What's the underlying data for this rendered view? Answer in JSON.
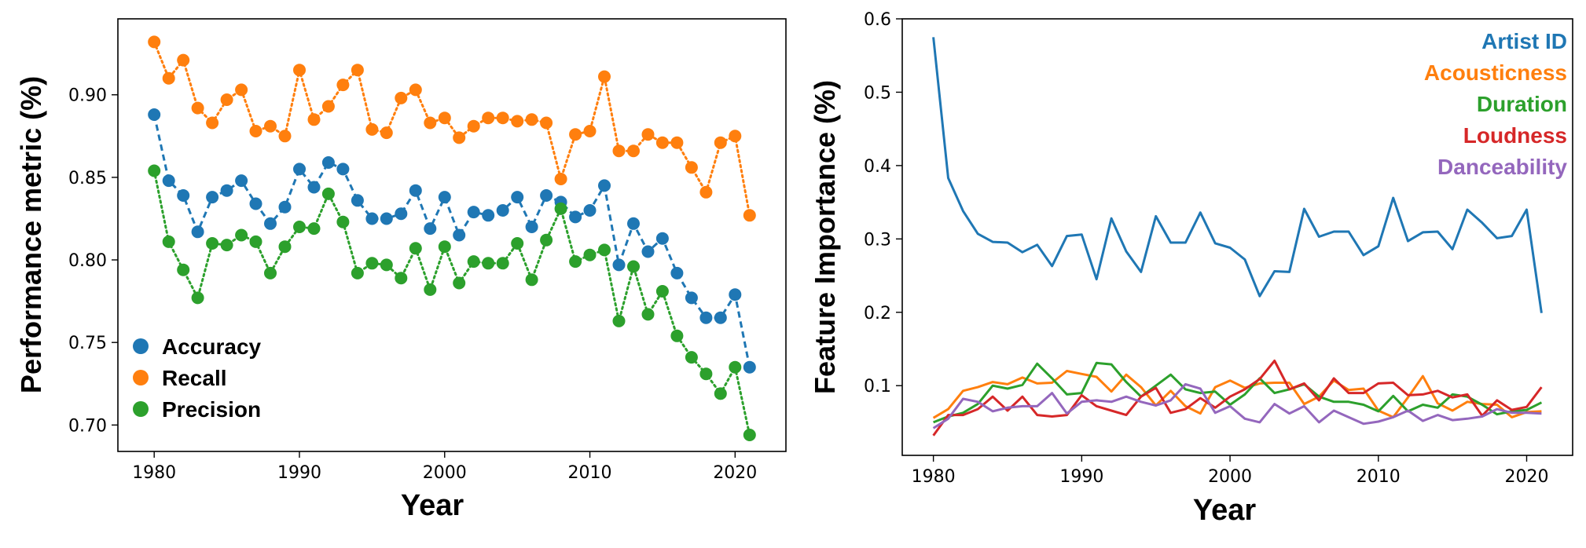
{
  "colors": {
    "blue": "#1f77b4",
    "orange": "#ff7f0e",
    "green": "#2ca02c",
    "red": "#d62728",
    "purple": "#9467bd"
  },
  "chart_data": [
    {
      "type": "line",
      "xlabel": "Year",
      "ylabel": "Performance metric (%)",
      "xlim": [
        1977.5,
        2023.5
      ],
      "ylim": [
        0.684,
        0.946
      ],
      "xticks": [
        1980,
        1990,
        2000,
        2010,
        2020
      ],
      "yticks": [
        0.7,
        0.75,
        0.8,
        0.85,
        0.9
      ],
      "ytick_labels": [
        "0.70",
        "0.75",
        "0.80",
        "0.85",
        "0.90"
      ],
      "grid": false,
      "legend_position": "lower-left",
      "marker": "circle",
      "x": [
        1980,
        1981,
        1982,
        1983,
        1984,
        1985,
        1986,
        1987,
        1988,
        1989,
        1990,
        1991,
        1992,
        1993,
        1994,
        1995,
        1996,
        1997,
        1998,
        1999,
        2000,
        2001,
        2002,
        2003,
        2004,
        2005,
        2006,
        2007,
        2008,
        2009,
        2010,
        2011,
        2012,
        2013,
        2014,
        2015,
        2016,
        2017,
        2018,
        2019,
        2020,
        2021
      ],
      "series": [
        {
          "name": "Accuracy",
          "color": "#1f77b4",
          "linestyle": "dashed",
          "values": [
            0.888,
            0.848,
            0.839,
            0.817,
            0.838,
            0.842,
            0.848,
            0.834,
            0.822,
            0.832,
            0.855,
            0.844,
            0.859,
            0.855,
            0.836,
            0.825,
            0.825,
            0.828,
            0.842,
            0.819,
            0.838,
            0.815,
            0.829,
            0.827,
            0.83,
            0.838,
            0.82,
            0.839,
            0.835,
            0.826,
            0.83,
            0.845,
            0.797,
            0.822,
            0.805,
            0.813,
            0.792,
            0.777,
            0.765,
            0.765,
            0.779,
            0.735
          ]
        },
        {
          "name": "Recall",
          "color": "#ff7f0e",
          "linestyle": "dotted",
          "values": [
            0.932,
            0.91,
            0.921,
            0.892,
            0.883,
            0.897,
            0.903,
            0.878,
            0.881,
            0.875,
            0.915,
            0.885,
            0.893,
            0.906,
            0.915,
            0.879,
            0.877,
            0.898,
            0.903,
            0.883,
            0.886,
            0.874,
            0.881,
            0.886,
            0.886,
            0.884,
            0.885,
            0.883,
            0.849,
            0.876,
            0.878,
            0.911,
            0.866,
            0.866,
            0.876,
            0.871,
            0.871,
            0.856,
            0.841,
            0.871,
            0.875,
            0.827
          ]
        },
        {
          "name": "Precision",
          "color": "#2ca02c",
          "linestyle": "dotted",
          "values": [
            0.854,
            0.811,
            0.794,
            0.777,
            0.81,
            0.809,
            0.815,
            0.811,
            0.792,
            0.808,
            0.82,
            0.819,
            0.84,
            0.823,
            0.792,
            0.798,
            0.797,
            0.789,
            0.807,
            0.782,
            0.808,
            0.786,
            0.799,
            0.798,
            0.798,
            0.81,
            0.788,
            0.812,
            0.831,
            0.799,
            0.803,
            0.806,
            0.763,
            0.796,
            0.767,
            0.781,
            0.754,
            0.741,
            0.731,
            0.719,
            0.735,
            0.694
          ]
        }
      ]
    },
    {
      "type": "line",
      "xlabel": "Year",
      "ylabel": "Feature Importance (%)",
      "xlim": [
        1977.9,
        2023.1
      ],
      "ylim": [
        0.005,
        0.6
      ],
      "xticks": [
        1980,
        1990,
        2000,
        2010,
        2020
      ],
      "yticks": [
        0.1,
        0.2,
        0.3,
        0.4,
        0.5,
        0.6
      ],
      "ytick_labels": [
        "0.1",
        "0.2",
        "0.3",
        "0.4",
        "0.5",
        "0.6"
      ],
      "grid": false,
      "legend_position": "top-right",
      "x": [
        1980,
        1981,
        1982,
        1983,
        1984,
        1985,
        1986,
        1987,
        1988,
        1989,
        1990,
        1991,
        1992,
        1993,
        1994,
        1995,
        1996,
        1997,
        1998,
        1999,
        2000,
        2001,
        2002,
        2003,
        2004,
        2005,
        2006,
        2007,
        2008,
        2009,
        2010,
        2011,
        2012,
        2013,
        2014,
        2015,
        2016,
        2017,
        2018,
        2019,
        2020,
        2021
      ],
      "series": [
        {
          "name": "Artist ID",
          "color": "#1f77b4",
          "values": [
            0.575,
            0.383,
            0.338,
            0.307,
            0.296,
            0.295,
            0.282,
            0.292,
            0.263,
            0.304,
            0.306,
            0.245,
            0.328,
            0.283,
            0.255,
            0.331,
            0.295,
            0.295,
            0.336,
            0.294,
            0.288,
            0.272,
            0.222,
            0.256,
            0.255,
            0.341,
            0.303,
            0.31,
            0.31,
            0.278,
            0.29,
            0.356,
            0.297,
            0.309,
            0.31,
            0.286,
            0.34,
            0.322,
            0.301,
            0.304,
            0.34,
            0.199
          ]
        },
        {
          "name": "Acousticness",
          "color": "#ff7f0e",
          "values": [
            0.056,
            0.068,
            0.093,
            0.098,
            0.105,
            0.102,
            0.111,
            0.103,
            0.104,
            0.12,
            0.116,
            0.112,
            0.092,
            0.115,
            0.098,
            0.073,
            0.093,
            0.072,
            0.062,
            0.098,
            0.107,
            0.097,
            0.103,
            0.104,
            0.104,
            0.075,
            0.085,
            0.107,
            0.094,
            0.096,
            0.066,
            0.057,
            0.084,
            0.113,
            0.076,
            0.066,
            0.078,
            0.075,
            0.074,
            0.057,
            0.064,
            0.065
          ]
        },
        {
          "name": "Duration",
          "color": "#2ca02c",
          "values": [
            0.05,
            0.058,
            0.063,
            0.075,
            0.1,
            0.096,
            0.101,
            0.13,
            0.11,
            0.088,
            0.09,
            0.131,
            0.129,
            0.105,
            0.085,
            0.1,
            0.115,
            0.095,
            0.09,
            0.092,
            0.074,
            0.088,
            0.11,
            0.09,
            0.095,
            0.102,
            0.085,
            0.078,
            0.078,
            0.074,
            0.065,
            0.086,
            0.065,
            0.074,
            0.07,
            0.088,
            0.085,
            0.074,
            0.061,
            0.065,
            0.067,
            0.077
          ]
        },
        {
          "name": "Loudness",
          "color": "#d62728",
          "values": [
            0.032,
            0.06,
            0.06,
            0.068,
            0.085,
            0.066,
            0.085,
            0.06,
            0.058,
            0.06,
            0.087,
            0.072,
            0.066,
            0.06,
            0.085,
            0.097,
            0.063,
            0.068,
            0.083,
            0.07,
            0.085,
            0.095,
            0.109,
            0.134,
            0.095,
            0.103,
            0.08,
            0.11,
            0.09,
            0.09,
            0.103,
            0.104,
            0.087,
            0.088,
            0.093,
            0.084,
            0.088,
            0.059,
            0.08,
            0.067,
            0.071,
            0.098
          ]
        },
        {
          "name": "Danceability",
          "color": "#9467bd",
          "values": [
            0.042,
            0.055,
            0.082,
            0.078,
            0.065,
            0.07,
            0.072,
            0.072,
            0.09,
            0.062,
            0.078,
            0.08,
            0.078,
            0.085,
            0.078,
            0.073,
            0.08,
            0.102,
            0.096,
            0.063,
            0.072,
            0.055,
            0.05,
            0.075,
            0.062,
            0.072,
            0.05,
            0.066,
            0.057,
            0.048,
            0.051,
            0.057,
            0.066,
            0.052,
            0.06,
            0.053,
            0.055,
            0.058,
            0.068,
            0.063,
            0.063,
            0.062
          ]
        }
      ]
    }
  ]
}
